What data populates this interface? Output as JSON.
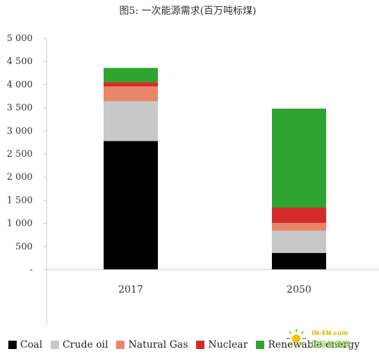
{
  "chart_data": {
    "type": "bar",
    "stacked": true,
    "title": "图5: 一次能源需求(百万吨标煤)",
    "categories": [
      "2017",
      "2050"
    ],
    "series": [
      {
        "name": "Coal",
        "color": "#000000",
        "values": [
          2780,
          360
        ]
      },
      {
        "name": "Crude oil",
        "color": "#c8c8c8",
        "values": [
          860,
          480
        ]
      },
      {
        "name": "Natural Gas",
        "color": "#e8866a",
        "values": [
          320,
          170
        ]
      },
      {
        "name": "Nuclear",
        "color": "#d42a2a",
        "values": [
          90,
          330
        ]
      },
      {
        "name": "Renewable energy",
        "color": "#2fa52f",
        "values": [
          310,
          2140
        ]
      }
    ],
    "ylim": [
      0,
      5000
    ],
    "yticks": [
      {
        "value": 0,
        "label": "-"
      },
      {
        "value": 500,
        "label": "500"
      },
      {
        "value": 1000,
        "label": "1 000"
      },
      {
        "value": 1500,
        "label": "1 500"
      },
      {
        "value": 2000,
        "label": "2 000"
      },
      {
        "value": 2500,
        "label": "2 500"
      },
      {
        "value": 3000,
        "label": "3 000"
      },
      {
        "value": 3500,
        "label": "3 500"
      },
      {
        "value": 4000,
        "label": "4 000"
      },
      {
        "value": 4500,
        "label": "4 500"
      },
      {
        "value": 5000,
        "label": "5 000"
      }
    ],
    "grid": false,
    "legend_position": "bottom"
  },
  "watermark": {
    "line1": "IN-EN.com",
    "line2": "国际能源网"
  }
}
